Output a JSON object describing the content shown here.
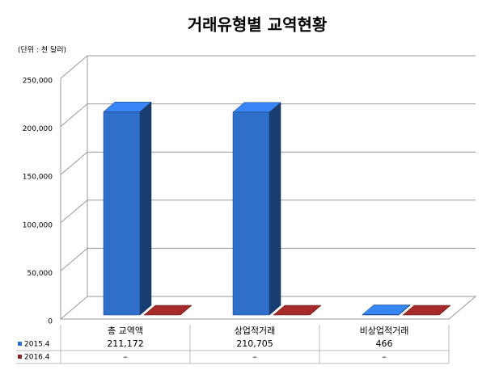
{
  "chart_data": {
    "type": "bar3d",
    "title": "거래유형별 교역현황",
    "unit_label": "(단위 : 천 달러)",
    "categories": [
      "총 교역액",
      "상업적거래",
      "비상업적거래"
    ],
    "series": [
      {
        "name": "2015.4",
        "color": "#2f6fcc",
        "values": [
          211172,
          210705,
          466
        ],
        "value_labels": [
          "211,172",
          "210,705",
          "466"
        ]
      },
      {
        "name": "2016.4",
        "color": "#8b2323",
        "values": [
          0,
          0,
          0
        ],
        "value_labels": [
          "–",
          "–",
          "–"
        ]
      }
    ],
    "ylim": [
      0,
      250000
    ],
    "yticks": [
      0,
      {
        "value": 50000,
        "label": "50,000"
      },
      {
        "value": 100000,
        "label": "100,000"
      },
      {
        "value": 150000,
        "label": "150,000"
      },
      {
        "value": 200000,
        "label": "200,000"
      },
      {
        "value": 250000,
        "label": "250,000"
      }
    ],
    "grid": true
  }
}
